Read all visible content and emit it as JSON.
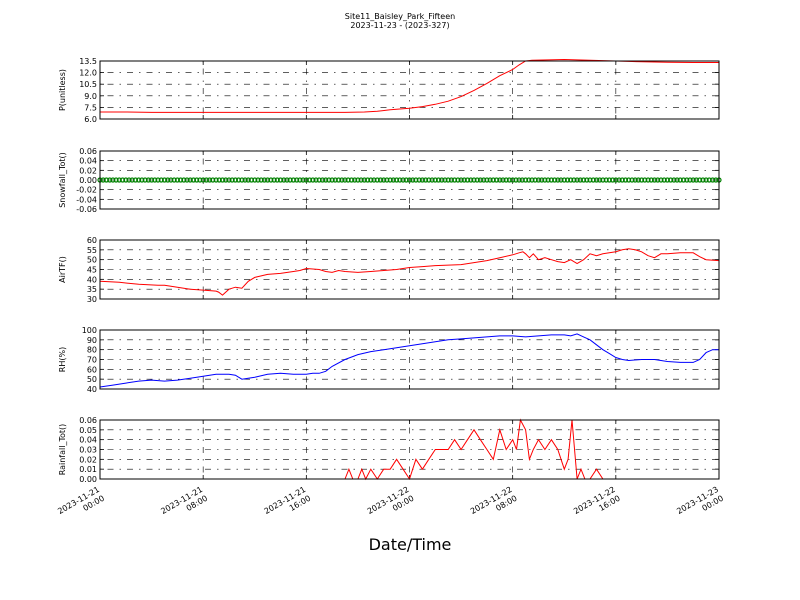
{
  "chart_data": {
    "type": "line",
    "title": "Site11_Baisley_Park_Fifteen",
    "subtitle": "2023-11-23 - (2023-327)",
    "xlabel": "Date/Time",
    "x_ticks": [
      {
        "line1": "2023-11-21",
        "line2": "00:00",
        "hour": 0
      },
      {
        "line1": "2023-11-21",
        "line2": "08:00",
        "hour": 8
      },
      {
        "line1": "2023-11-21",
        "line2": "16:00",
        "hour": 16
      },
      {
        "line1": "2023-11-22",
        "line2": "00:00",
        "hour": 24
      },
      {
        "line1": "2023-11-22",
        "line2": "08:00",
        "hour": 32
      },
      {
        "line1": "2023-11-22",
        "line2": "16:00",
        "hour": 40
      },
      {
        "line1": "2023-11-23",
        "line2": "00:00",
        "hour": 48
      }
    ],
    "xlim": [
      0,
      48
    ],
    "panels": [
      {
        "ylabel": "P(unitless)",
        "ylim": [
          6.0,
          13.5
        ],
        "yticks": [
          6.0,
          7.5,
          9.0,
          10.5,
          12.0,
          13.5
        ],
        "ytick_labels": [
          "6.0",
          "7.5",
          "9.0",
          "10.5",
          "12.0",
          "13.5"
        ],
        "color": "#ff0000",
        "style": "line",
        "points": [
          [
            0,
            6.9
          ],
          [
            2,
            6.9
          ],
          [
            4,
            6.85
          ],
          [
            8,
            6.85
          ],
          [
            12,
            6.85
          ],
          [
            16,
            6.85
          ],
          [
            19,
            6.85
          ],
          [
            20.5,
            6.9
          ],
          [
            21.5,
            7.0
          ],
          [
            22.5,
            7.2
          ],
          [
            24,
            7.4
          ],
          [
            25,
            7.6
          ],
          [
            26,
            7.9
          ],
          [
            27,
            8.3
          ],
          [
            28,
            8.9
          ],
          [
            29,
            9.7
          ],
          [
            30,
            10.6
          ],
          [
            31,
            11.6
          ],
          [
            32,
            12.4
          ],
          [
            32.5,
            13.0
          ],
          [
            33,
            13.5
          ],
          [
            33.5,
            13.6
          ],
          [
            36,
            13.7
          ],
          [
            38,
            13.6
          ],
          [
            40,
            13.5
          ],
          [
            42,
            13.4
          ],
          [
            44,
            13.35
          ],
          [
            46,
            13.3
          ],
          [
            48,
            13.3
          ]
        ]
      },
      {
        "ylabel": "Snowfall_Tot()",
        "ylim": [
          -0.06,
          0.06
        ],
        "yticks": [
          -0.06,
          -0.04,
          -0.02,
          0.0,
          0.02,
          0.04,
          0.06
        ],
        "ytick_labels": [
          "-0.06",
          "-0.04",
          "-0.02",
          "0.00",
          "0.02",
          "0.04",
          "0.06"
        ],
        "color": "#008000",
        "style": "markers",
        "constant_value": 0.0,
        "interval_hours": 0.25
      },
      {
        "ylabel": "AirTF()",
        "ylim": [
          30,
          60
        ],
        "yticks": [
          30,
          35,
          40,
          45,
          50,
          55,
          60
        ],
        "ytick_labels": [
          "30",
          "35",
          "40",
          "45",
          "50",
          "55",
          "60"
        ],
        "color": "#ff0000",
        "style": "line",
        "points": [
          [
            0,
            39
          ],
          [
            1.5,
            38.5
          ],
          [
            3,
            37.5
          ],
          [
            4.5,
            37
          ],
          [
            5,
            37
          ],
          [
            6,
            36
          ],
          [
            7,
            35
          ],
          [
            8,
            34.5
          ],
          [
            9,
            34
          ],
          [
            9,
            34
          ],
          [
            9.2,
            33.5
          ],
          [
            9.5,
            32
          ],
          [
            10,
            35
          ],
          [
            10.5,
            36
          ],
          [
            11,
            35.5
          ],
          [
            11.5,
            39
          ],
          [
            12,
            41
          ],
          [
            13,
            42.5
          ],
          [
            14,
            43
          ],
          [
            15,
            44
          ],
          [
            15.5,
            44.5
          ],
          [
            16,
            45.5
          ],
          [
            17,
            45
          ],
          [
            17.5,
            44
          ],
          [
            18,
            43.5
          ],
          [
            18.5,
            44.5
          ],
          [
            19,
            44
          ],
          [
            20,
            43.5
          ],
          [
            21,
            44
          ],
          [
            22,
            44.5
          ],
          [
            23,
            45
          ],
          [
            24,
            46
          ],
          [
            25,
            46.5
          ],
          [
            26,
            47
          ],
          [
            28,
            47.5
          ],
          [
            29,
            48.5
          ],
          [
            30,
            49.5
          ],
          [
            31,
            51
          ],
          [
            32,
            52.5
          ],
          [
            32.5,
            53.5
          ],
          [
            32.8,
            54
          ],
          [
            33,
            53
          ],
          [
            33.3,
            51
          ],
          [
            33.6,
            53
          ],
          [
            34,
            50
          ],
          [
            34.5,
            51
          ],
          [
            35,
            50
          ],
          [
            35.5,
            49
          ],
          [
            36,
            48.5
          ],
          [
            36.5,
            50
          ],
          [
            37,
            48
          ],
          [
            37.5,
            50
          ],
          [
            38,
            53
          ],
          [
            38.5,
            52
          ],
          [
            39,
            53
          ],
          [
            40,
            54
          ],
          [
            40.5,
            55
          ],
          [
            41,
            55.5
          ],
          [
            41.5,
            55
          ],
          [
            42,
            54
          ],
          [
            42.5,
            52
          ],
          [
            43,
            51
          ],
          [
            43.5,
            53
          ],
          [
            44,
            53
          ],
          [
            45,
            53.5
          ],
          [
            46,
            53.5
          ],
          [
            46.5,
            51.5
          ],
          [
            47,
            50
          ],
          [
            48,
            49.5
          ]
        ]
      },
      {
        "ylabel": "RH(%)",
        "ylim": [
          40,
          100
        ],
        "yticks": [
          40,
          50,
          60,
          70,
          80,
          90,
          100
        ],
        "ytick_labels": [
          "40",
          "50",
          "60",
          "70",
          "80",
          "90",
          "100"
        ],
        "color": "#0000ff",
        "style": "line",
        "points": [
          [
            0,
            42
          ],
          [
            1,
            44
          ],
          [
            2,
            46
          ],
          [
            3,
            48
          ],
          [
            4,
            49
          ],
          [
            5,
            48
          ],
          [
            6,
            49
          ],
          [
            7,
            51
          ],
          [
            8,
            53
          ],
          [
            9,
            55
          ],
          [
            10,
            55
          ],
          [
            10.5,
            54
          ],
          [
            11,
            50
          ],
          [
            11.5,
            51
          ],
          [
            12,
            52
          ],
          [
            13,
            55
          ],
          [
            14,
            56
          ],
          [
            15,
            55
          ],
          [
            16,
            55
          ],
          [
            16.5,
            56
          ],
          [
            17,
            56
          ],
          [
            17.5,
            58
          ],
          [
            18,
            63
          ],
          [
            19,
            70
          ],
          [
            20,
            75
          ],
          [
            21,
            78
          ],
          [
            22,
            80
          ],
          [
            23,
            82
          ],
          [
            24,
            84
          ],
          [
            25,
            86
          ],
          [
            26,
            88
          ],
          [
            27,
            90
          ],
          [
            28,
            91
          ],
          [
            29,
            92
          ],
          [
            30,
            93
          ],
          [
            31,
            94
          ],
          [
            32,
            94
          ],
          [
            33,
            93
          ],
          [
            34,
            94
          ],
          [
            35,
            95
          ],
          [
            36,
            95
          ],
          [
            36.5,
            94
          ],
          [
            37,
            96
          ],
          [
            37.5,
            93
          ],
          [
            38,
            90
          ],
          [
            38.5,
            85
          ],
          [
            39,
            80
          ],
          [
            39.5,
            76
          ],
          [
            40,
            72
          ],
          [
            40.5,
            70
          ],
          [
            41,
            69
          ],
          [
            42,
            70
          ],
          [
            43,
            70
          ],
          [
            44,
            68
          ],
          [
            45,
            67
          ],
          [
            46,
            67
          ],
          [
            46.5,
            70
          ],
          [
            47,
            77
          ],
          [
            47.5,
            80
          ],
          [
            48,
            80
          ]
        ]
      },
      {
        "ylabel": "Rainfall_Tot()",
        "ylim": [
          0.0,
          0.06
        ],
        "yticks": [
          0.0,
          0.01,
          0.02,
          0.03,
          0.04,
          0.05,
          0.06
        ],
        "ytick_labels": [
          "0.00",
          "0.01",
          "0.02",
          "0.03",
          "0.04",
          "0.05",
          "0.06"
        ],
        "color": "#ff0000",
        "style": "line",
        "points": [
          [
            0,
            0
          ],
          [
            19,
            0
          ],
          [
            19.3,
            0.01
          ],
          [
            19.6,
            0
          ],
          [
            20,
            0
          ],
          [
            20.3,
            0.01
          ],
          [
            20.6,
            0
          ],
          [
            21,
            0.01
          ],
          [
            21.5,
            0
          ],
          [
            22,
            0.01
          ],
          [
            22.5,
            0.01
          ],
          [
            23,
            0.02
          ],
          [
            23.5,
            0.01
          ],
          [
            24,
            0
          ],
          [
            24.5,
            0.02
          ],
          [
            25,
            0.01
          ],
          [
            25.5,
            0.02
          ],
          [
            26,
            0.03
          ],
          [
            27,
            0.03
          ],
          [
            27.5,
            0.04
          ],
          [
            28,
            0.03
          ],
          [
            28.5,
            0.04
          ],
          [
            29,
            0.05
          ],
          [
            29.5,
            0.04
          ],
          [
            30,
            0.03
          ],
          [
            30.5,
            0.02
          ],
          [
            31,
            0.05
          ],
          [
            31.5,
            0.03
          ],
          [
            32,
            0.04
          ],
          [
            32.3,
            0.03
          ],
          [
            32.6,
            0.06
          ],
          [
            33,
            0.05
          ],
          [
            33.3,
            0.02
          ],
          [
            33.6,
            0.03
          ],
          [
            34,
            0.04
          ],
          [
            34.5,
            0.03
          ],
          [
            35,
            0.04
          ],
          [
            35.5,
            0.03
          ],
          [
            36,
            0.01
          ],
          [
            36.3,
            0.02
          ],
          [
            36.6,
            0.06
          ],
          [
            37,
            0
          ],
          [
            37.3,
            0.01
          ],
          [
            37.6,
            0
          ],
          [
            38,
            0
          ],
          [
            38.5,
            0.01
          ],
          [
            39,
            0
          ],
          [
            48,
            0
          ]
        ]
      }
    ]
  }
}
